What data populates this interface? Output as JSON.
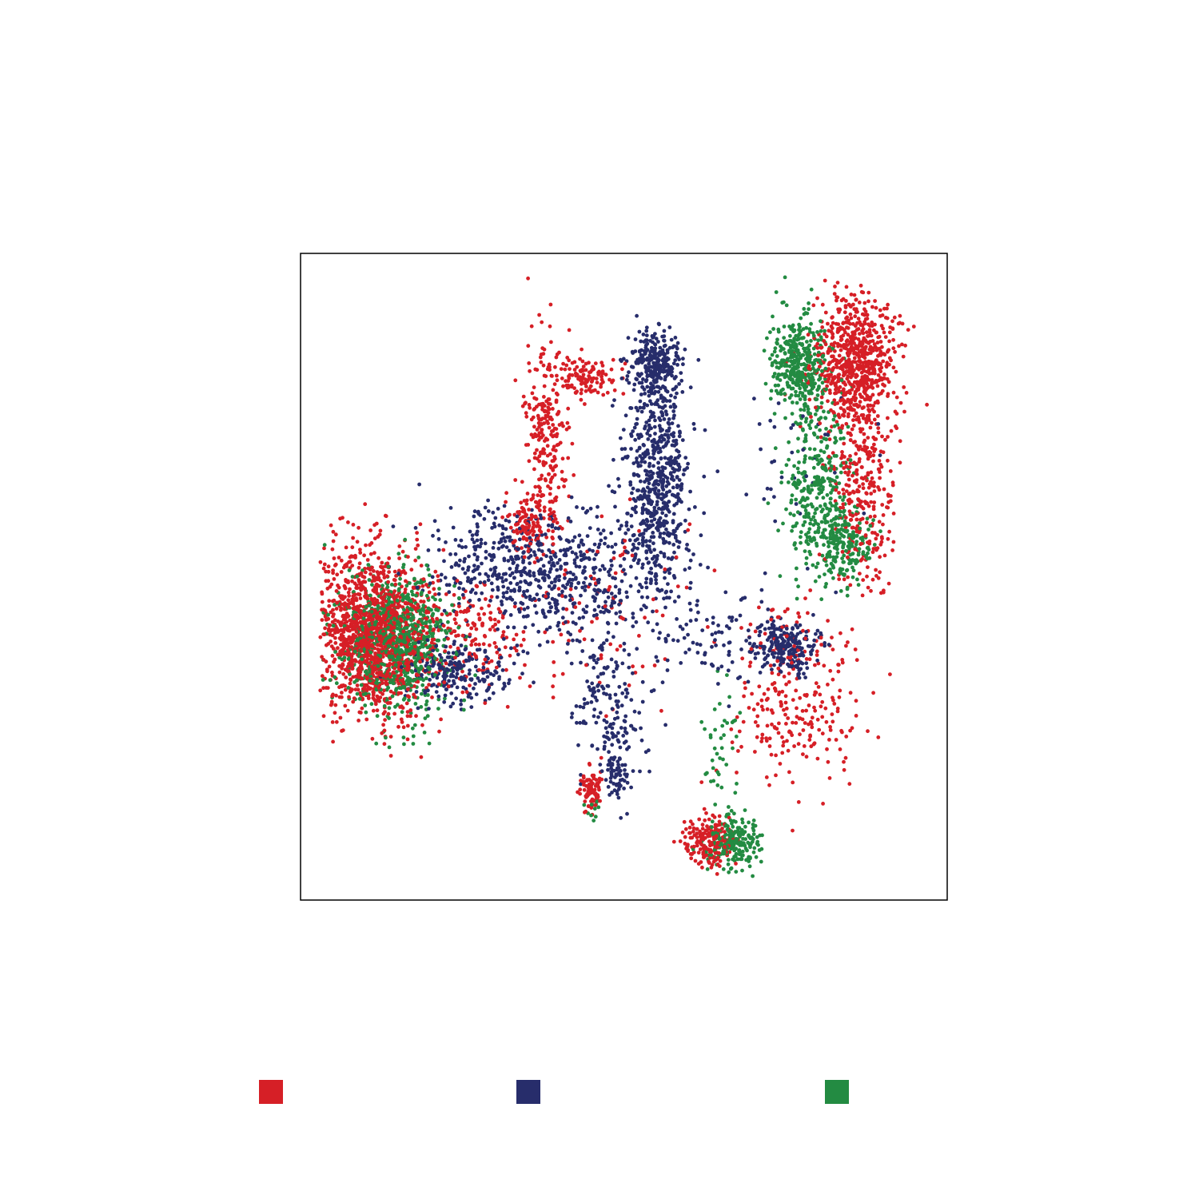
{
  "chart_data": {
    "type": "scatter",
    "title": "",
    "xlabel": "",
    "ylabel": "",
    "xlim": [
      0,
      100
    ],
    "ylim": [
      0,
      100
    ],
    "grid": false,
    "axis_ticks": false,
    "legend_position": "bottom",
    "series": [
      {
        "color": "#d61f26",
        "clusters": [
          {
            "cx": 11,
            "cy": 41,
            "sx": 4.5,
            "sy": 6.5,
            "n": 1400
          },
          {
            "cx": 38,
            "cy": 70,
            "sx": 1.8,
            "sy": 8.0,
            "n": 260
          },
          {
            "cx": 44,
            "cy": 81,
            "sx": 2.5,
            "sy": 1.5,
            "n": 120
          },
          {
            "cx": 35,
            "cy": 58,
            "sx": 1.5,
            "sy": 2.0,
            "n": 90
          },
          {
            "cx": 26,
            "cy": 41,
            "sx": 5.0,
            "sy": 4.0,
            "n": 170
          },
          {
            "cx": 86,
            "cy": 83,
            "sx": 3.2,
            "sy": 5.0,
            "n": 700
          },
          {
            "cx": 87,
            "cy": 63,
            "sx": 2.5,
            "sy": 7.0,
            "n": 300
          },
          {
            "cx": 77,
            "cy": 31,
            "sx": 5.0,
            "sy": 7.5,
            "n": 260
          },
          {
            "cx": 63,
            "cy": 9,
            "sx": 2.0,
            "sy": 2.0,
            "n": 180
          },
          {
            "cx": 45,
            "cy": 17,
            "sx": 0.9,
            "sy": 1.6,
            "n": 90
          },
          {
            "cx": 48,
            "cy": 46,
            "sx": 8.0,
            "sy": 8.0,
            "n": 90
          }
        ]
      },
      {
        "color": "#272d6b",
        "clusters": [
          {
            "cx": 55,
            "cy": 83,
            "sx": 2.0,
            "sy": 2.5,
            "n": 260
          },
          {
            "cx": 55,
            "cy": 64,
            "sx": 2.5,
            "sy": 9.0,
            "n": 650
          },
          {
            "cx": 32,
            "cy": 52,
            "sx": 6.0,
            "sy": 4.5,
            "n": 350
          },
          {
            "cx": 43,
            "cy": 49,
            "sx": 5.5,
            "sy": 5.5,
            "n": 300
          },
          {
            "cx": 24,
            "cy": 35,
            "sx": 4.0,
            "sy": 2.5,
            "n": 220
          },
          {
            "cx": 48,
            "cy": 30,
            "sx": 3.0,
            "sy": 6.0,
            "n": 160
          },
          {
            "cx": 49,
            "cy": 20,
            "sx": 1.0,
            "sy": 2.0,
            "n": 60
          },
          {
            "cx": 75,
            "cy": 39,
            "sx": 2.5,
            "sy": 2.0,
            "n": 220
          },
          {
            "cx": 65,
            "cy": 40,
            "sx": 5.0,
            "sy": 4.0,
            "n": 90
          },
          {
            "cx": 77,
            "cy": 67,
            "sx": 5.0,
            "sy": 9.0,
            "n": 40
          }
        ]
      },
      {
        "color": "#238b42",
        "clusters": [
          {
            "cx": 15,
            "cy": 40,
            "sx": 4.0,
            "sy": 5.5,
            "n": 800
          },
          {
            "cx": 77,
            "cy": 83,
            "sx": 2.3,
            "sy": 4.0,
            "n": 380
          },
          {
            "cx": 80,
            "cy": 64,
            "sx": 2.5,
            "sy": 7.0,
            "n": 320
          },
          {
            "cx": 84,
            "cy": 55,
            "sx": 2.5,
            "sy": 3.0,
            "n": 200
          },
          {
            "cx": 67,
            "cy": 9,
            "sx": 2.0,
            "sy": 1.8,
            "n": 220
          },
          {
            "cx": 65,
            "cy": 23,
            "sx": 1.5,
            "sy": 5.0,
            "n": 40
          },
          {
            "cx": 45,
            "cy": 14,
            "sx": 0.6,
            "sy": 0.8,
            "n": 10
          }
        ]
      }
    ]
  }
}
